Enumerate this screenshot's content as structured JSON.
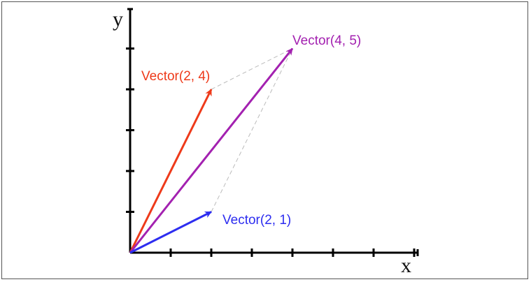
{
  "axes": {
    "x_label": "x",
    "y_label": "y",
    "x_ticks": [
      1,
      2,
      3,
      4,
      5,
      6,
      7
    ],
    "y_ticks": [
      1,
      2,
      3,
      4,
      5
    ]
  },
  "vectors": [
    {
      "id": "v21",
      "x": 2,
      "y": 1,
      "label": "Vector(2, 1)",
      "color": "#2d2df0"
    },
    {
      "id": "v24",
      "x": 2,
      "y": 4,
      "label": "Vector(2, 4)",
      "color": "#ee3a1a"
    },
    {
      "id": "v45",
      "x": 4,
      "y": 5,
      "label": "Vector(4, 5)",
      "color": "#a321b0"
    }
  ],
  "guide_color": "#bbbbbb"
}
